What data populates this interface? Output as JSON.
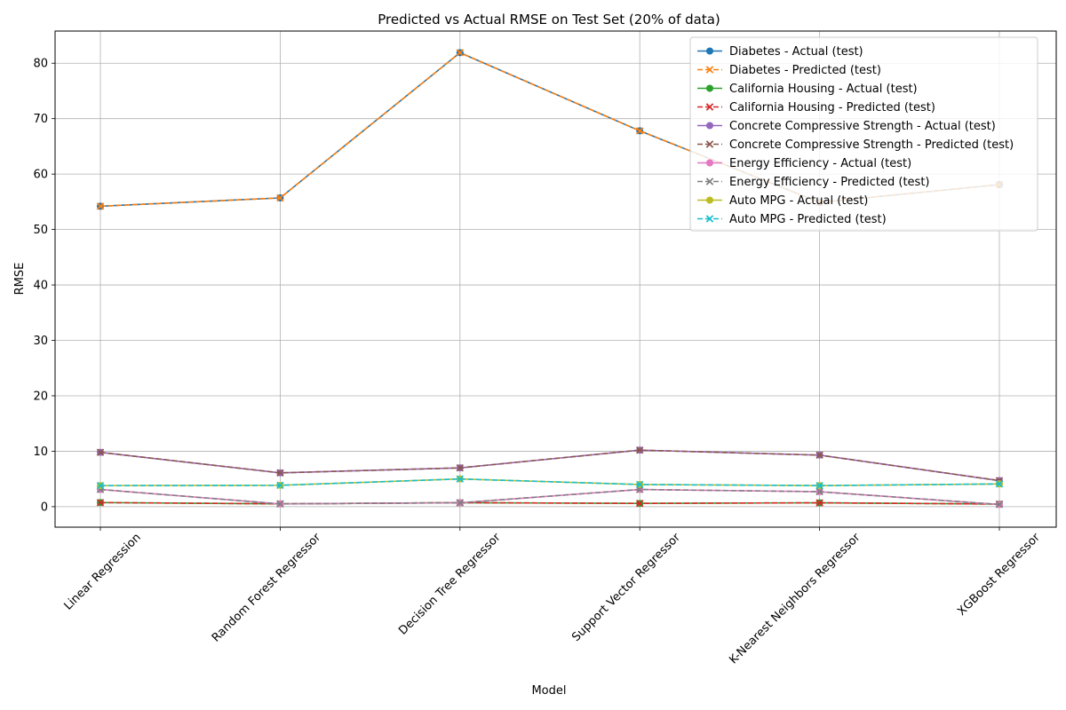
{
  "chart_data": {
    "type": "line",
    "title": "Predicted vs Actual RMSE on Test Set (20% of data)",
    "xlabel": "Model",
    "ylabel": "RMSE",
    "categories": [
      "Linear Regression",
      "Random Forest Regressor",
      "Decision Tree Regressor",
      "Support Vector Regressor",
      "K-Nearest Neighbors Regressor",
      "XGBoost Regressor"
    ],
    "ylim": [
      -3.7,
      85.8
    ],
    "yticks": [
      0,
      10,
      20,
      30,
      40,
      50,
      60,
      70,
      80
    ],
    "grid": true,
    "legend_position": "top-right",
    "series": [
      {
        "name": "Diabetes - Actual (test)",
        "values": [
          54.2,
          55.7,
          81.9,
          67.8,
          54.9,
          58.1
        ],
        "color": "#1f77b4",
        "dash": "solid",
        "marker": "circle"
      },
      {
        "name": "Diabetes - Predicted (test)",
        "values": [
          54.2,
          55.7,
          81.9,
          67.8,
          54.9,
          58.1
        ],
        "color": "#ff7f0e",
        "dash": "dashed",
        "marker": "x"
      },
      {
        "name": "California Housing - Actual (test)",
        "values": [
          0.74,
          0.51,
          0.72,
          0.59,
          0.7,
          0.47
        ],
        "color": "#2ca02c",
        "dash": "solid",
        "marker": "circle"
      },
      {
        "name": "California Housing - Predicted (test)",
        "values": [
          0.74,
          0.51,
          0.72,
          0.59,
          0.7,
          0.47
        ],
        "color": "#d62728",
        "dash": "dashed",
        "marker": "x"
      },
      {
        "name": "Concrete Compressive Strength - Actual (test)",
        "values": [
          9.8,
          6.1,
          7.0,
          10.2,
          9.3,
          4.7
        ],
        "color": "#9467bd",
        "dash": "solid",
        "marker": "circle"
      },
      {
        "name": "Concrete Compressive Strength - Predicted (test)",
        "values": [
          9.8,
          6.1,
          7.0,
          10.2,
          9.3,
          4.7
        ],
        "color": "#8c564b",
        "dash": "dashed",
        "marker": "x"
      },
      {
        "name": "Energy Efficiency - Actual (test)",
        "values": [
          3.1,
          0.5,
          0.7,
          3.1,
          2.7,
          0.4
        ],
        "color": "#e377c2",
        "dash": "solid",
        "marker": "circle"
      },
      {
        "name": "Energy Efficiency - Predicted (test)",
        "values": [
          3.1,
          0.5,
          0.7,
          3.1,
          2.7,
          0.4
        ],
        "color": "#7f7f7f",
        "dash": "dashed",
        "marker": "x"
      },
      {
        "name": "Auto MPG - Actual (test)",
        "values": [
          3.8,
          3.85,
          5.0,
          4.0,
          3.8,
          4.1
        ],
        "color": "#bcbd22",
        "dash": "solid",
        "marker": "circle"
      },
      {
        "name": "Auto MPG - Predicted (test)",
        "values": [
          3.8,
          3.85,
          5.0,
          4.0,
          3.8,
          4.1
        ],
        "color": "#17becf",
        "dash": "dashed",
        "marker": "x"
      }
    ]
  }
}
